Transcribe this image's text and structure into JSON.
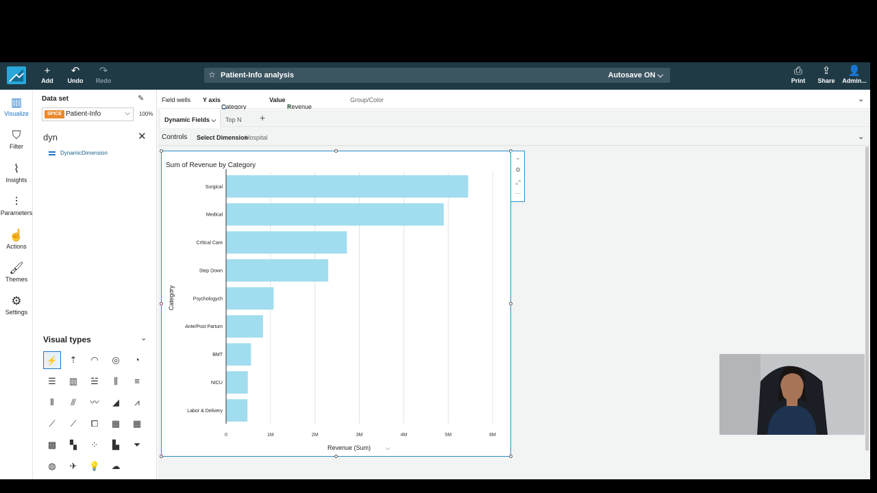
{
  "toolbar": {
    "add": "Add",
    "undo": "Undo",
    "redo": "Redo",
    "analysis_name": "Patient-Info analysis",
    "autosave": "Autosave ON",
    "print": "Print",
    "share": "Share",
    "admin": "Admin..."
  },
  "nav": [
    "Visualize",
    "Filter",
    "Insights",
    "Parameters",
    "Actions",
    "Themes",
    "Settings"
  ],
  "datapanel": {
    "title": "Data set",
    "dataset_badge": "SPICE",
    "dataset": "Patient-Info",
    "percent": "100%",
    "search_value": "dyn",
    "fields": [
      "DynamicDimension"
    ],
    "visual_types_title": "Visual types"
  },
  "wells": {
    "title": "Field wells",
    "y_axis_label": "Y axis",
    "y_axis_value": "Category",
    "value_label": "Value",
    "value_value": "Revenue (Sum)",
    "group_color": "Group/Color"
  },
  "tabs": [
    "Dynamic Fields",
    "Top N"
  ],
  "controls": {
    "title": "Controls",
    "control_label": "Select Dimension",
    "control_value": "Hospital"
  },
  "chart_data": {
    "type": "bar",
    "orientation": "horizontal",
    "title": "Sum of Revenue by Category",
    "xlabel": "Revenue (Sum)",
    "ylabel": "Category",
    "categories": [
      "Surgical",
      "Medical",
      "Critical Care",
      "Step Down",
      "Psychologych",
      "Ante/Post Partum",
      "BMT",
      "NICU",
      "Labor & Delivery"
    ],
    "values": [
      5450000,
      4900000,
      2720000,
      2300000,
      1070000,
      830000,
      560000,
      490000,
      480000
    ],
    "xlim": [
      0,
      6000000
    ],
    "xticks": [
      "0",
      "1M",
      "2M",
      "3M",
      "4M",
      "5M",
      "6M"
    ],
    "bar_color": "#a1ddee",
    "grid": true
  },
  "colors": {
    "topbar": "#1f3a45",
    "accent": "#1a73c8",
    "selection": "#2a8fc7"
  }
}
